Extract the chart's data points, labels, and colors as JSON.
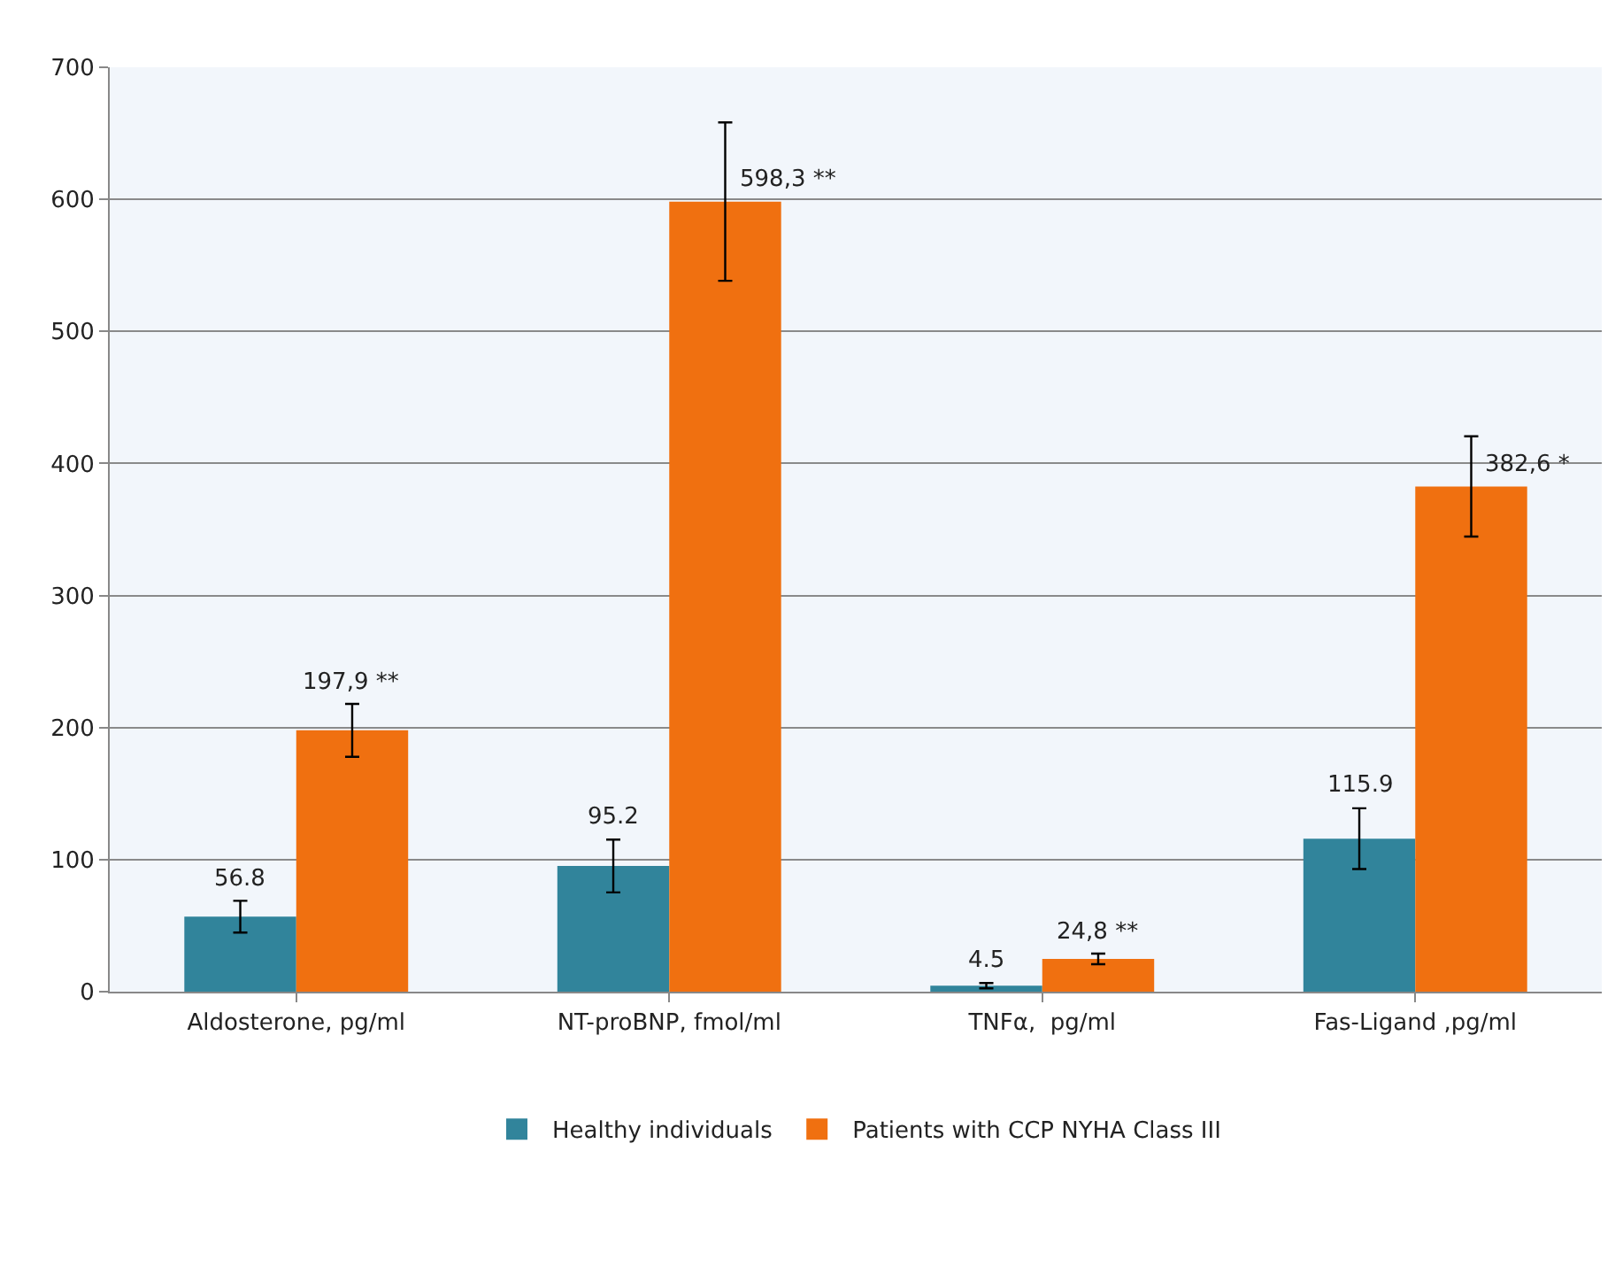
{
  "chart_data": {
    "type": "bar",
    "categories": [
      "Aldosterone, pg/ml",
      "NT-proBNP, fmol/ml",
      "TNFα,  pg/ml",
      "Fas-Ligand ,pg/ml"
    ],
    "series": [
      {
        "name": "Healthy individuals",
        "color": "#31849b",
        "values": [
          56.8,
          95.2,
          4.5,
          115.9
        ],
        "errors": [
          12,
          20,
          2,
          23
        ],
        "value_labels": [
          "56.8",
          "95.2",
          "4.5",
          "115.9"
        ]
      },
      {
        "name": "Patients with CCP NYHA Class III",
        "color": "#f07010",
        "values": [
          197.9,
          598.3,
          24.8,
          382.6
        ],
        "errors": [
          20,
          60,
          4,
          38
        ],
        "value_labels": [
          "197,9 **",
          "598,3 **",
          "24,8 **",
          "382,6 *"
        ]
      }
    ],
    "ylim": [
      0,
      700
    ],
    "yticks": [
      0,
      100,
      200,
      300,
      400,
      500,
      600,
      700
    ],
    "grid": "y",
    "legend": "bottom"
  }
}
